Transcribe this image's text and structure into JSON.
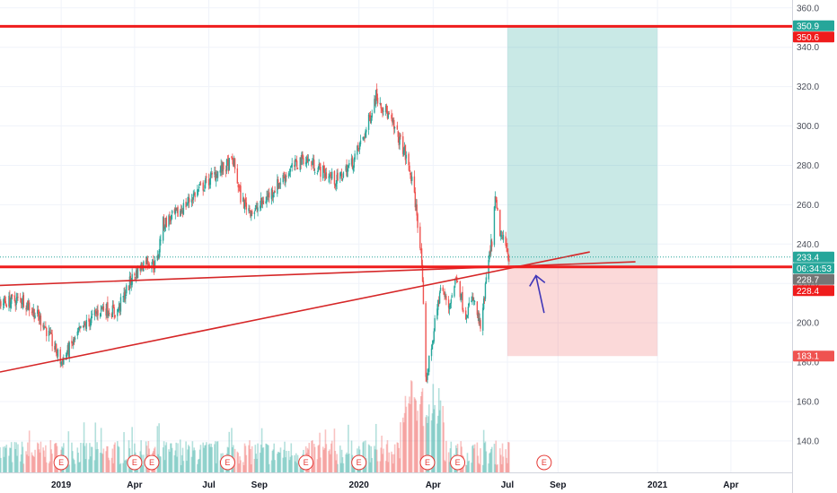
{
  "chart_data": {
    "type": "candlestick",
    "y_axis": {
      "position": "right",
      "range": [
        124,
        364
      ],
      "ticks": [
        140,
        160,
        180,
        200,
        220,
        240,
        260,
        280,
        300,
        320,
        340,
        360
      ],
      "tick_labels": [
        "140.0",
        "160.0",
        "180.0",
        "200.0",
        "220.0",
        "240.0",
        "260.0",
        "280.0",
        "300.0",
        "320.0",
        "340.0",
        "360.0"
      ]
    },
    "x_axis": {
      "range": [
        "2018-10-18",
        "2021-06-15"
      ],
      "ticks": [
        {
          "date": "2019-01-01",
          "label": "2019"
        },
        {
          "date": "2019-04-01",
          "label": "Apr"
        },
        {
          "date": "2019-07-01",
          "label": "Jul"
        },
        {
          "date": "2019-09-01",
          "label": "Sep"
        },
        {
          "date": "2020-01-01",
          "label": "2020"
        },
        {
          "date": "2020-04-01",
          "label": "Apr"
        },
        {
          "date": "2020-07-01",
          "label": "Jul"
        },
        {
          "date": "2020-09-01",
          "label": "Sep"
        },
        {
          "date": "2021-01-01",
          "label": "2021"
        },
        {
          "date": "2021-04-01",
          "label": "Apr"
        }
      ]
    },
    "price_path": [
      [
        "2018-10-18",
        210
      ],
      [
        "2018-11-15",
        212
      ],
      [
        "2018-12-10",
        200
      ],
      [
        "2019-01-01",
        180
      ],
      [
        "2019-01-25",
        196
      ],
      [
        "2019-02-20",
        208
      ],
      [
        "2019-03-10",
        205
      ],
      [
        "2019-03-28",
        222
      ],
      [
        "2019-04-15",
        232
      ],
      [
        "2019-04-28",
        229
      ],
      [
        "2019-05-05",
        250
      ],
      [
        "2019-05-25",
        256
      ],
      [
        "2019-06-15",
        266
      ],
      [
        "2019-07-10",
        276
      ],
      [
        "2019-07-31",
        282
      ],
      [
        "2019-08-10",
        262
      ],
      [
        "2019-08-25",
        256
      ],
      [
        "2019-09-15",
        266
      ],
      [
        "2019-10-05",
        276
      ],
      [
        "2019-10-25",
        284
      ],
      [
        "2019-11-20",
        276
      ],
      [
        "2019-12-05",
        272
      ],
      [
        "2019-12-25",
        282
      ],
      [
        "2020-01-10",
        298
      ],
      [
        "2020-01-22",
        316
      ],
      [
        "2020-02-05",
        306
      ],
      [
        "2020-02-25",
        288
      ],
      [
        "2020-03-05",
        274
      ],
      [
        "2020-03-12",
        256
      ],
      [
        "2020-03-18",
        230
      ],
      [
        "2020-03-23",
        170
      ],
      [
        "2020-03-30",
        188
      ],
      [
        "2020-04-10",
        218
      ],
      [
        "2020-04-20",
        208
      ],
      [
        "2020-04-30",
        224
      ],
      [
        "2020-05-10",
        204
      ],
      [
        "2020-05-20",
        212
      ],
      [
        "2020-05-30",
        196
      ],
      [
        "2020-06-05",
        222
      ],
      [
        "2020-06-12",
        242
      ],
      [
        "2020-06-16",
        262
      ],
      [
        "2020-06-23",
        244
      ],
      [
        "2020-06-30",
        238
      ],
      [
        "2020-07-03",
        233.4
      ]
    ],
    "horizontal_lines": [
      {
        "value": 350.6,
        "color": "#ef1c1c"
      },
      {
        "value": 228.4,
        "color": "#ef1c1c"
      }
    ],
    "trend_lines": [
      {
        "from": [
          "2018-10-18",
          219
        ],
        "to": [
          "2020-12-05",
          231
        ],
        "color": "#d62728"
      },
      {
        "from": [
          "2018-10-18",
          175
        ],
        "to": [
          "2020-10-10",
          236
        ],
        "color": "#d62728"
      }
    ],
    "position": {
      "start": "2020-07-01",
      "end": "2021-01-01",
      "entry": 228.4,
      "target": 350.9,
      "stop": 183.1,
      "profit_color": "#26a69a",
      "loss_color": "#ef5350"
    },
    "price_badges": [
      {
        "value": 350.9,
        "label": "350.9",
        "color": "#26a69a"
      },
      {
        "value": 350.6,
        "label": "350.6",
        "color": "#ef1c1c"
      },
      {
        "value": 233.4,
        "label": "233.4",
        "color": "#26a69a"
      },
      {
        "value": 228.4,
        "label": "06:34:53",
        "color": "#26a69a"
      },
      {
        "value": 228.7,
        "label": "228.7",
        "color": "#757575"
      },
      {
        "value": 228.4,
        "label": "228.4",
        "color": "#ef1c1c"
      },
      {
        "value": 183.1,
        "label": "183.1",
        "color": "#ef5350"
      }
    ],
    "last_price": 233.4,
    "earnings_markers": [
      "2019-01-01",
      "2019-04-01",
      "2019-04-22",
      "2019-07-24",
      "2019-10-28",
      "2020-01-01",
      "2020-03-25",
      "2020-05-01",
      "2020-08-15"
    ],
    "earnings_label": "E",
    "arrow": {
      "from": [
        "2020-08-15",
        205
      ],
      "to": [
        "2020-08-05",
        224
      ],
      "color": "#3f36b8"
    }
  }
}
